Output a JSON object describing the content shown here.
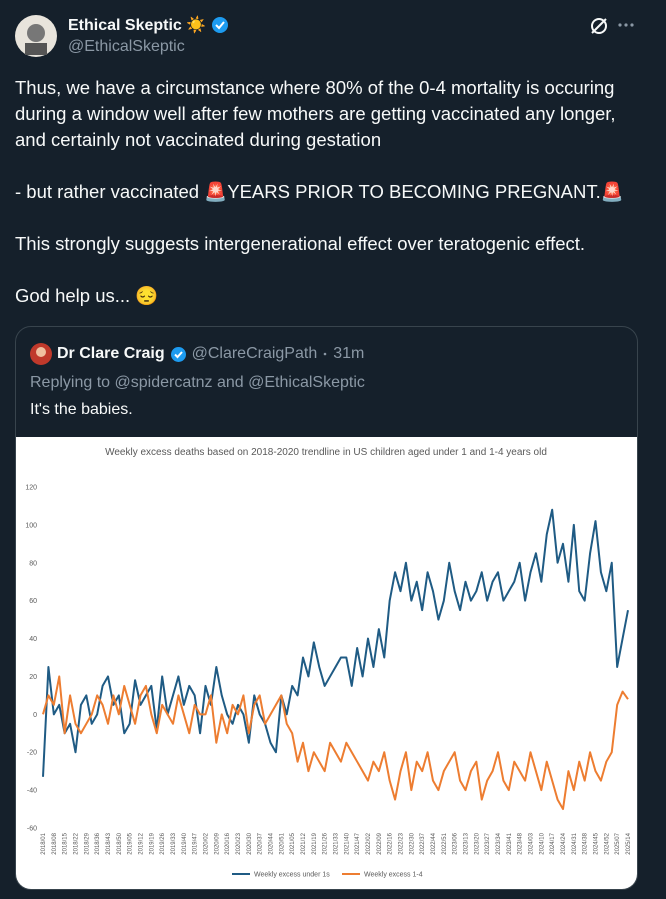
{
  "tweet": {
    "author_name": "Ethical Skeptic ☀️",
    "handle": "@EthicalSkeptic",
    "paragraphs": [
      "Thus, we have a circumstance where 80% of the 0-4 mortality is occuring during a window well after few mothers are getting vaccinated any longer, and certainly not vaccinated during gestation",
      "- but rather vaccinated 🚨YEARS PRIOR TO BECOMING PREGNANT.🚨",
      "This strongly suggests intergenerational effect over teratogenic effect.",
      "God help us... 😔"
    ]
  },
  "quoted_tweet": {
    "author_name": "Dr Clare Craig",
    "handle": "@ClareCraigPath",
    "time": "31m",
    "reply_line": "Replying to @spidercatnz and @EthicalSkeptic",
    "text": "It's the babies."
  },
  "chart_data": {
    "type": "line",
    "title": "Weekly excess deaths based on 2018-2020 trendline in US children aged under 1 and 1-4 years old",
    "categories": [
      "2018/01",
      null,
      "2018/08",
      null,
      "2018/15",
      null,
      "2018/22",
      null,
      "2018/29",
      null,
      "2018/36",
      null,
      "2018/43",
      null,
      "2018/50",
      null,
      "2019/05",
      null,
      "2019/12",
      null,
      "2019/19",
      null,
      "2019/26",
      null,
      "2019/33",
      null,
      "2019/40",
      null,
      "2019/47",
      null,
      "2020/02",
      null,
      "2020/09",
      null,
      "2020/16",
      null,
      "2020/23",
      null,
      "2020/30",
      null,
      "2020/37",
      null,
      "2020/44",
      null,
      "2020/51",
      null,
      "2021/05",
      null,
      "2021/12",
      null,
      "2021/19",
      null,
      "2021/26",
      null,
      "2021/33",
      null,
      "2021/40",
      null,
      "2021/47",
      null,
      "2022/02",
      null,
      "2022/09",
      null,
      "2022/16",
      null,
      "2022/23",
      null,
      "2022/30",
      null,
      "2022/37",
      null,
      "2022/44",
      null,
      "2022/51",
      null,
      "2023/06",
      null,
      "2023/13",
      null,
      "2023/20",
      null,
      "2023/27",
      null,
      "2023/34",
      null,
      "2023/41",
      null,
      "2023/48",
      null,
      "2024/03",
      null,
      "2024/10",
      null,
      "2024/17",
      null,
      "2024/24",
      null,
      "2024/31",
      null,
      "2024/38",
      null,
      "2024/45",
      null,
      "2024/52",
      null,
      "2025/07",
      null,
      "2025/14"
    ],
    "series": [
      {
        "name": "Weekly excess under 1s",
        "color": "#1f5b84",
        "values": [
          -33,
          25,
          0,
          5,
          -10,
          -5,
          -20,
          5,
          10,
          -5,
          0,
          15,
          20,
          5,
          10,
          -10,
          -5,
          18,
          5,
          10,
          15,
          -8,
          20,
          0,
          10,
          20,
          5,
          15,
          10,
          -10,
          15,
          5,
          25,
          10,
          0,
          -5,
          5,
          0,
          -15,
          10,
          0,
          -5,
          -15,
          -20,
          10,
          0,
          15,
          10,
          30,
          20,
          38,
          25,
          15,
          20,
          25,
          30,
          30,
          15,
          35,
          20,
          40,
          25,
          45,
          30,
          60,
          75,
          65,
          80,
          60,
          70,
          55,
          75,
          65,
          50,
          60,
          80,
          65,
          55,
          70,
          60,
          65,
          75,
          60,
          70,
          75,
          60,
          65,
          70,
          80,
          60,
          75,
          85,
          70,
          95,
          108,
          80,
          90,
          70,
          100,
          65,
          60,
          85,
          102,
          75,
          65,
          80,
          25,
          40,
          55
        ]
      },
      {
        "name": "Weekly excess 1-4",
        "color": "#ed7d31",
        "values": [
          0,
          10,
          5,
          20,
          -10,
          10,
          -5,
          -10,
          -5,
          0,
          10,
          5,
          -5,
          10,
          0,
          15,
          5,
          -5,
          10,
          15,
          0,
          -10,
          5,
          0,
          -5,
          10,
          0,
          -10,
          5,
          0,
          0,
          10,
          -15,
          0,
          -10,
          5,
          0,
          10,
          -10,
          5,
          10,
          -5,
          0,
          5,
          10,
          -5,
          -10,
          -25,
          -15,
          -30,
          -20,
          -25,
          -30,
          -15,
          -20,
          -25,
          -15,
          -20,
          -25,
          -30,
          -35,
          -25,
          -30,
          -20,
          -35,
          -45,
          -30,
          -20,
          -40,
          -25,
          -30,
          -20,
          -35,
          -40,
          -30,
          -25,
          -20,
          -35,
          -40,
          -30,
          -25,
          -45,
          -35,
          -30,
          -20,
          -35,
          -40,
          -25,
          -30,
          -35,
          -20,
          -30,
          -40,
          -25,
          -35,
          -45,
          -50,
          -30,
          -40,
          -25,
          -35,
          -20,
          -30,
          -35,
          -25,
          -20,
          5,
          12,
          8
        ]
      }
    ],
    "ylim": [
      -60,
      120
    ],
    "yticks": [
      -60,
      -40,
      -20,
      0,
      20,
      40,
      60,
      80,
      100,
      120
    ],
    "grid": false,
    "legend": "bottom"
  }
}
